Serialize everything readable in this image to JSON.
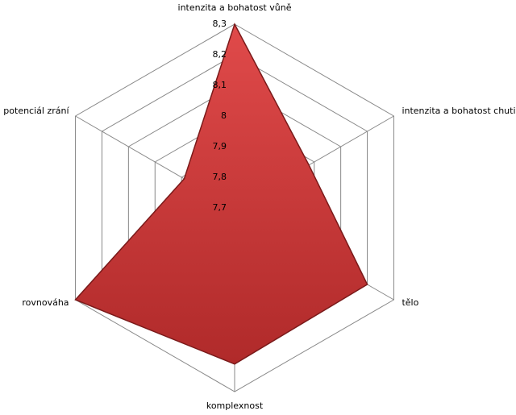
{
  "chart_data": {
    "type": "radar",
    "categories": [
      "intenzita a bohatost vůně",
      "intenzita a bohatost chuti",
      "tělo",
      "komplexnost",
      "rovnováha",
      "potenciál zrání"
    ],
    "values": [
      8.3,
      7.98,
      8.2,
      8.21,
      8.3,
      7.89
    ],
    "color": "#d23c3c",
    "ylim": [
      7.7,
      8.3
    ],
    "yticks": [
      {
        "value": 7.7,
        "label": "7,7"
      },
      {
        "value": 7.8,
        "label": "7,8"
      },
      {
        "value": 7.9,
        "label": "7,9"
      },
      8,
      {
        "value": 8.1,
        "label": "8,1"
      },
      {
        "value": 8.2,
        "label": "8,2"
      },
      {
        "value": 8.3,
        "label": "8,3"
      }
    ],
    "grid": true
  }
}
